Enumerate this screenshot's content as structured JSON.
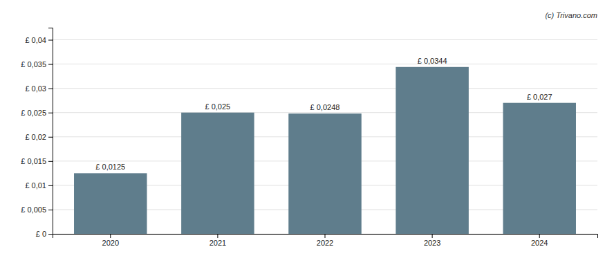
{
  "chart_data": {
    "type": "bar",
    "categories": [
      "2020",
      "2021",
      "2022",
      "2023",
      "2024"
    ],
    "values": [
      0.0125,
      0.025,
      0.0248,
      0.0344,
      0.027
    ],
    "value_labels": [
      "£ 0,0125",
      "£ 0,025",
      "£ 0,0248",
      "£ 0,0344",
      "£ 0,027"
    ],
    "color": "#5f7d8c",
    "ylim": [
      0,
      0.0425
    ],
    "yticks": [
      {
        "value": 0,
        "label": "£ 0"
      },
      {
        "value": 0.005,
        "label": "£ 0,005"
      },
      {
        "value": 0.01,
        "label": "£ 0,01"
      },
      {
        "value": 0.015,
        "label": "£ 0,015"
      },
      {
        "value": 0.02,
        "label": "£ 0,02"
      },
      {
        "value": 0.025,
        "label": "£ 0,025"
      },
      {
        "value": 0.03,
        "label": "£ 0,03"
      },
      {
        "value": 0.035,
        "label": "£ 0,035"
      },
      {
        "value": 0.04,
        "label": "£ 0,04"
      }
    ],
    "grid": true,
    "data_labels": true,
    "annotations": [
      "(c) Trivano.com"
    ]
  }
}
